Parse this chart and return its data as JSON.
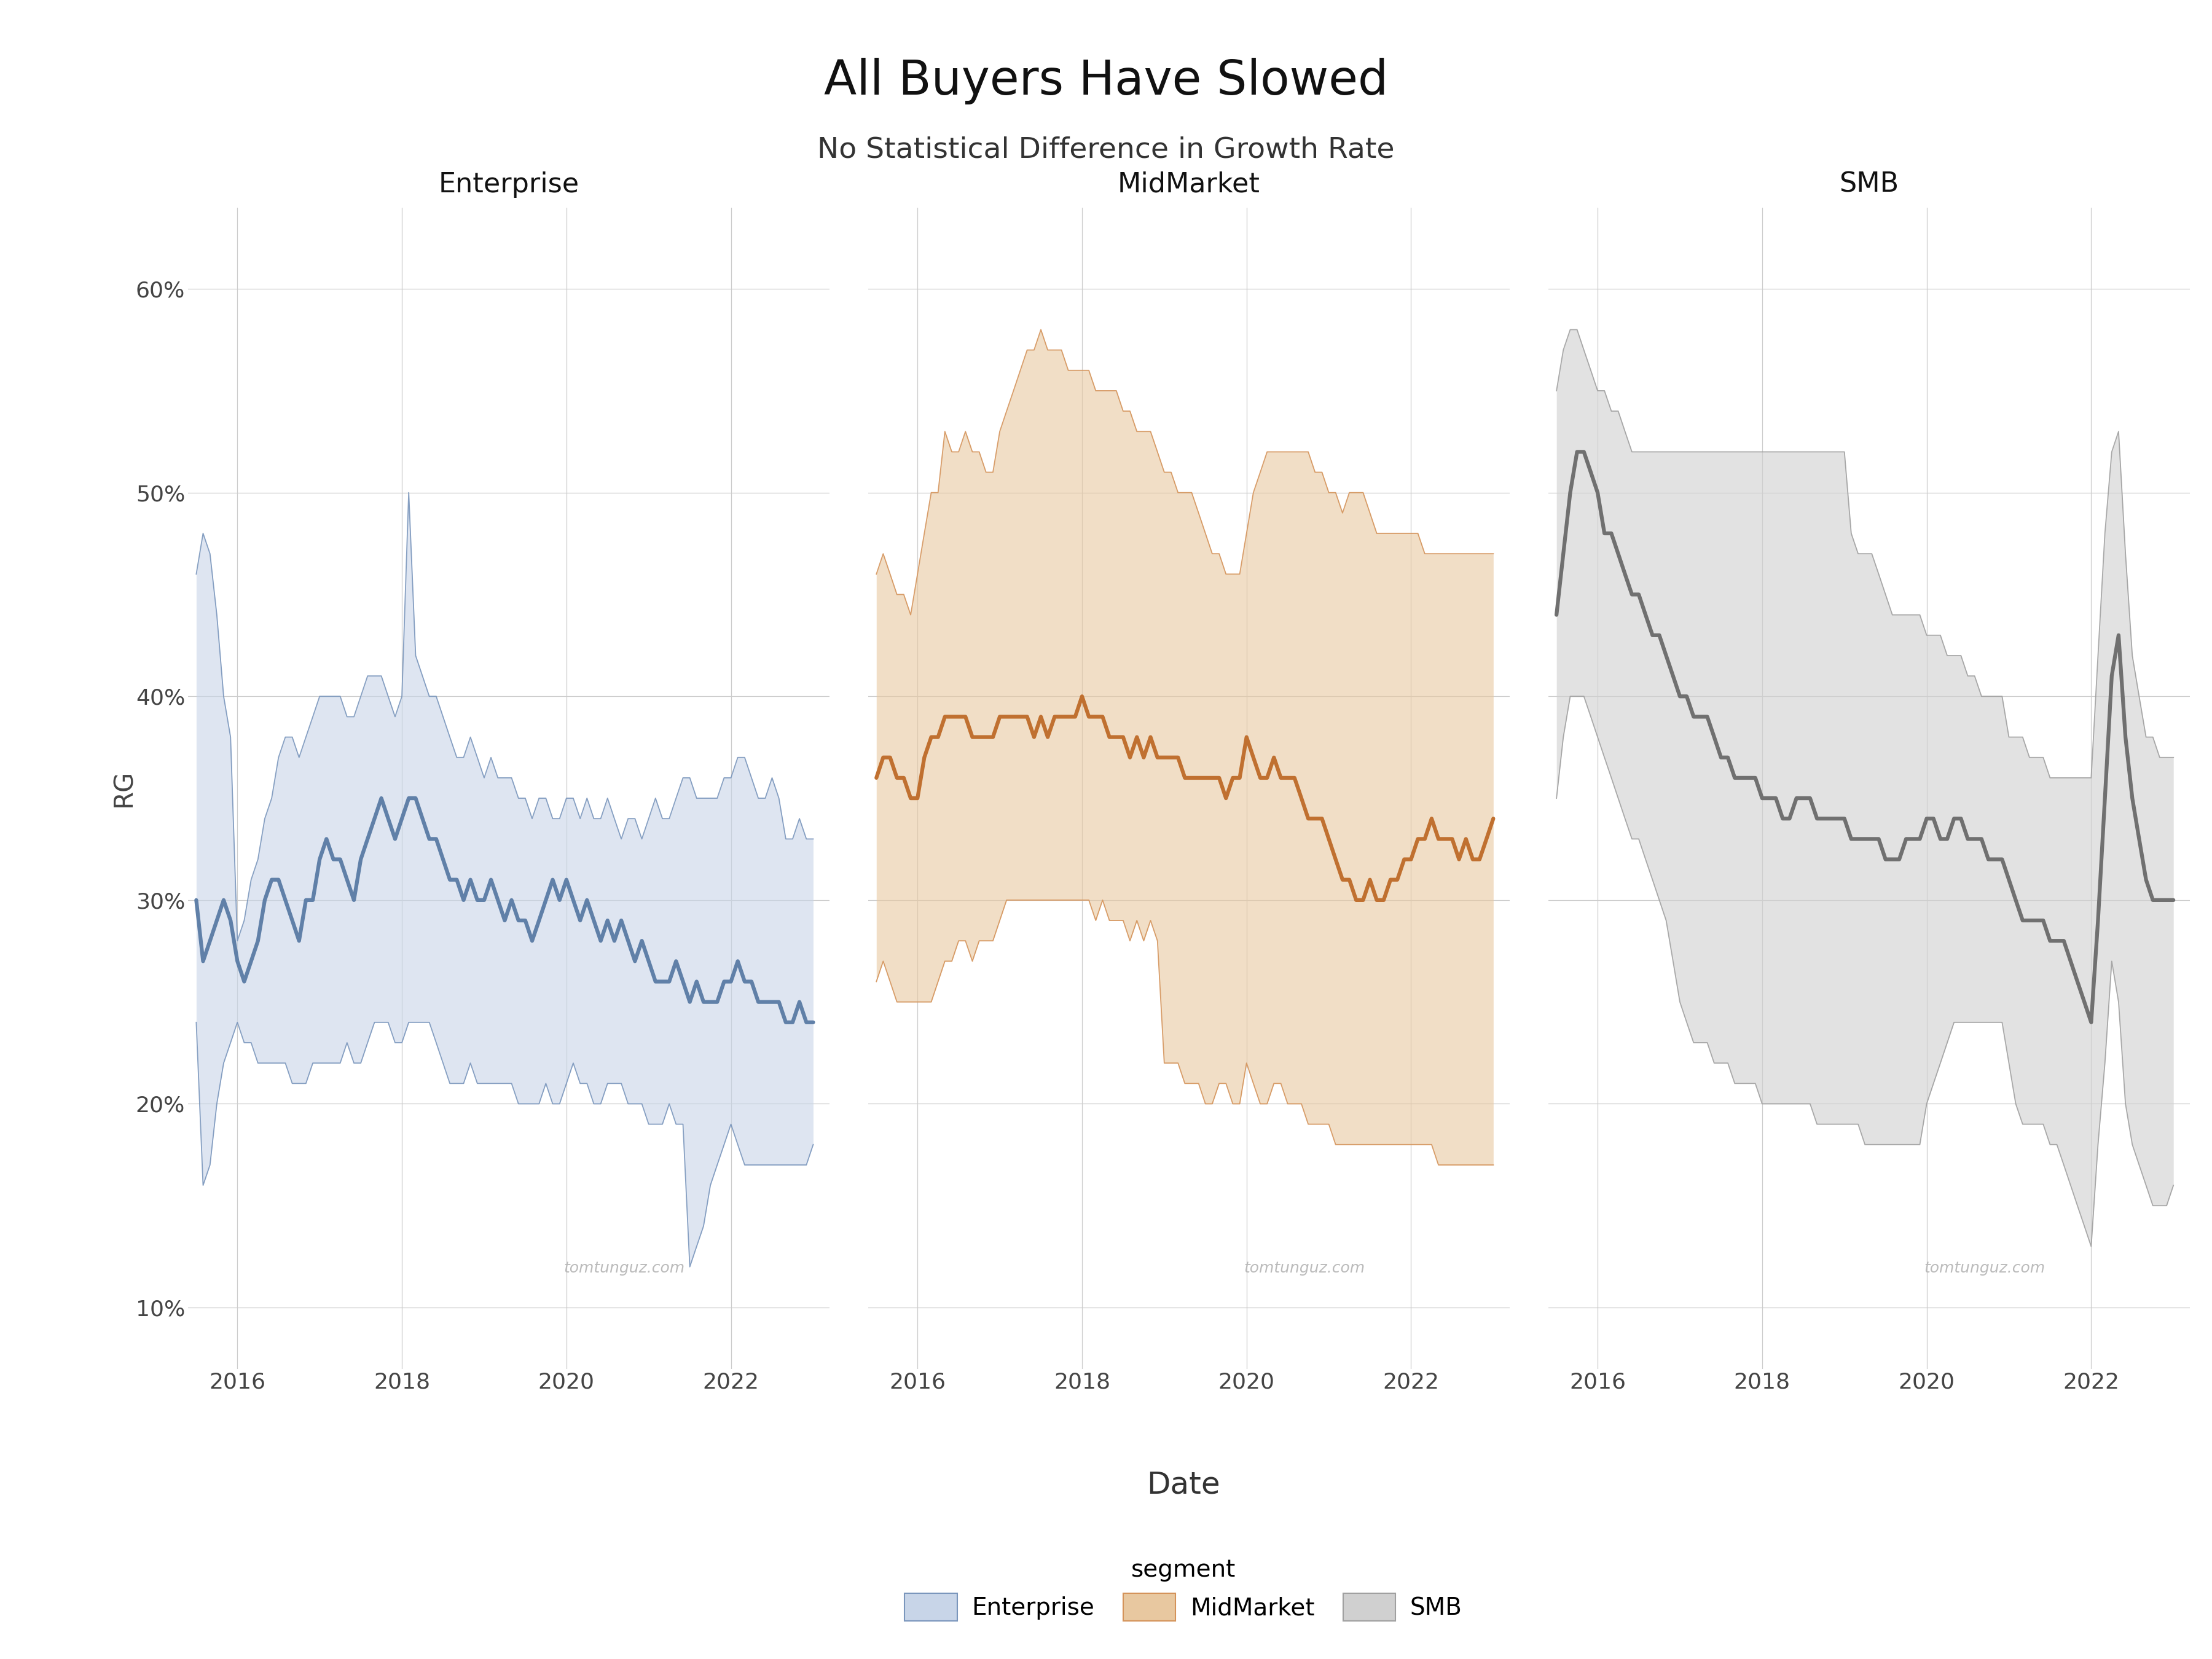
{
  "title": "All Buyers Have Slowed",
  "subtitle": "No Statistical Difference in Growth Rate",
  "xlabel": "Date",
  "ylabel": "RG",
  "background_color": "#ffffff",
  "panel_titles": [
    "Enterprise",
    "MidMarket",
    "SMB"
  ],
  "yticks": [
    0.1,
    0.2,
    0.3,
    0.4,
    0.5,
    0.6
  ],
  "ytick_labels": [
    "10%",
    "20%",
    "30%",
    "40%",
    "50%",
    "60%"
  ],
  "ylim": [
    0.07,
    0.64
  ],
  "xlim": [
    2015.4,
    2023.2
  ],
  "xtick_labels": [
    "2016",
    "2018",
    "2020",
    "2022"
  ],
  "watermark": "tomtunguz.com",
  "enterprise_fill_color": "#c8d5e8",
  "enterprise_line_color": "#7a96bc",
  "enterprise_median_color": "#6080a8",
  "midmarket_fill_color": "#e8c8a0",
  "midmarket_line_color": "#d4935a",
  "midmarket_median_color": "#c07030",
  "smb_fill_color": "#d0d0d0",
  "smb_line_color": "#a0a0a0",
  "smb_median_color": "#707070",
  "enterprise_dates": [
    2015.5,
    2015.583,
    2015.667,
    2015.75,
    2015.833,
    2015.917,
    2016.0,
    2016.083,
    2016.167,
    2016.25,
    2016.333,
    2016.417,
    2016.5,
    2016.583,
    2016.667,
    2016.75,
    2016.833,
    2016.917,
    2017.0,
    2017.083,
    2017.167,
    2017.25,
    2017.333,
    2017.417,
    2017.5,
    2017.583,
    2017.667,
    2017.75,
    2017.833,
    2017.917,
    2018.0,
    2018.083,
    2018.167,
    2018.25,
    2018.333,
    2018.417,
    2018.5,
    2018.583,
    2018.667,
    2018.75,
    2018.833,
    2018.917,
    2019.0,
    2019.083,
    2019.167,
    2019.25,
    2019.333,
    2019.417,
    2019.5,
    2019.583,
    2019.667,
    2019.75,
    2019.833,
    2019.917,
    2020.0,
    2020.083,
    2020.167,
    2020.25,
    2020.333,
    2020.417,
    2020.5,
    2020.583,
    2020.667,
    2020.75,
    2020.833,
    2020.917,
    2021.0,
    2021.083,
    2021.167,
    2021.25,
    2021.333,
    2021.417,
    2021.5,
    2021.583,
    2021.667,
    2021.75,
    2021.833,
    2021.917,
    2022.0,
    2022.083,
    2022.167,
    2022.25,
    2022.333,
    2022.417,
    2022.5,
    2022.583,
    2022.667,
    2022.75,
    2022.833,
    2022.917,
    2023.0
  ],
  "enterprise_median": [
    0.3,
    0.27,
    0.28,
    0.29,
    0.3,
    0.29,
    0.27,
    0.26,
    0.27,
    0.28,
    0.3,
    0.31,
    0.31,
    0.3,
    0.29,
    0.28,
    0.3,
    0.3,
    0.32,
    0.33,
    0.32,
    0.32,
    0.31,
    0.3,
    0.32,
    0.33,
    0.34,
    0.35,
    0.34,
    0.33,
    0.34,
    0.35,
    0.35,
    0.34,
    0.33,
    0.33,
    0.32,
    0.31,
    0.31,
    0.3,
    0.31,
    0.3,
    0.3,
    0.31,
    0.3,
    0.29,
    0.3,
    0.29,
    0.29,
    0.28,
    0.29,
    0.3,
    0.31,
    0.3,
    0.31,
    0.3,
    0.29,
    0.3,
    0.29,
    0.28,
    0.29,
    0.28,
    0.29,
    0.28,
    0.27,
    0.28,
    0.27,
    0.26,
    0.26,
    0.26,
    0.27,
    0.26,
    0.25,
    0.26,
    0.25,
    0.25,
    0.25,
    0.26,
    0.26,
    0.27,
    0.26,
    0.26,
    0.25,
    0.25,
    0.25,
    0.25,
    0.24,
    0.24,
    0.25,
    0.24,
    0.24
  ],
  "enterprise_upper": [
    0.46,
    0.48,
    0.47,
    0.44,
    0.4,
    0.38,
    0.28,
    0.29,
    0.31,
    0.32,
    0.34,
    0.35,
    0.37,
    0.38,
    0.38,
    0.37,
    0.38,
    0.39,
    0.4,
    0.4,
    0.4,
    0.4,
    0.39,
    0.39,
    0.4,
    0.41,
    0.41,
    0.41,
    0.4,
    0.39,
    0.4,
    0.5,
    0.42,
    0.41,
    0.4,
    0.4,
    0.39,
    0.38,
    0.37,
    0.37,
    0.38,
    0.37,
    0.36,
    0.37,
    0.36,
    0.36,
    0.36,
    0.35,
    0.35,
    0.34,
    0.35,
    0.35,
    0.34,
    0.34,
    0.35,
    0.35,
    0.34,
    0.35,
    0.34,
    0.34,
    0.35,
    0.34,
    0.33,
    0.34,
    0.34,
    0.33,
    0.34,
    0.35,
    0.34,
    0.34,
    0.35,
    0.36,
    0.36,
    0.35,
    0.35,
    0.35,
    0.35,
    0.36,
    0.36,
    0.37,
    0.37,
    0.36,
    0.35,
    0.35,
    0.36,
    0.35,
    0.33,
    0.33,
    0.34,
    0.33,
    0.33
  ],
  "enterprise_lower": [
    0.24,
    0.16,
    0.17,
    0.2,
    0.22,
    0.23,
    0.24,
    0.23,
    0.23,
    0.22,
    0.22,
    0.22,
    0.22,
    0.22,
    0.21,
    0.21,
    0.21,
    0.22,
    0.22,
    0.22,
    0.22,
    0.22,
    0.23,
    0.22,
    0.22,
    0.23,
    0.24,
    0.24,
    0.24,
    0.23,
    0.23,
    0.24,
    0.24,
    0.24,
    0.24,
    0.23,
    0.22,
    0.21,
    0.21,
    0.21,
    0.22,
    0.21,
    0.21,
    0.21,
    0.21,
    0.21,
    0.21,
    0.2,
    0.2,
    0.2,
    0.2,
    0.21,
    0.2,
    0.2,
    0.21,
    0.22,
    0.21,
    0.21,
    0.2,
    0.2,
    0.21,
    0.21,
    0.21,
    0.2,
    0.2,
    0.2,
    0.19,
    0.19,
    0.19,
    0.2,
    0.19,
    0.19,
    0.12,
    0.13,
    0.14,
    0.16,
    0.17,
    0.18,
    0.19,
    0.18,
    0.17,
    0.17,
    0.17,
    0.17,
    0.17,
    0.17,
    0.17,
    0.17,
    0.17,
    0.17,
    0.18
  ],
  "midmarket_dates": [
    2015.5,
    2015.583,
    2015.667,
    2015.75,
    2015.833,
    2015.917,
    2016.0,
    2016.083,
    2016.167,
    2016.25,
    2016.333,
    2016.417,
    2016.5,
    2016.583,
    2016.667,
    2016.75,
    2016.833,
    2016.917,
    2017.0,
    2017.083,
    2017.167,
    2017.25,
    2017.333,
    2017.417,
    2017.5,
    2017.583,
    2017.667,
    2017.75,
    2017.833,
    2017.917,
    2018.0,
    2018.083,
    2018.167,
    2018.25,
    2018.333,
    2018.417,
    2018.5,
    2018.583,
    2018.667,
    2018.75,
    2018.833,
    2018.917,
    2019.0,
    2019.083,
    2019.167,
    2019.25,
    2019.333,
    2019.417,
    2019.5,
    2019.583,
    2019.667,
    2019.75,
    2019.833,
    2019.917,
    2020.0,
    2020.083,
    2020.167,
    2020.25,
    2020.333,
    2020.417,
    2020.5,
    2020.583,
    2020.667,
    2020.75,
    2020.833,
    2020.917,
    2021.0,
    2021.083,
    2021.167,
    2021.25,
    2021.333,
    2021.417,
    2021.5,
    2021.583,
    2021.667,
    2021.75,
    2021.833,
    2021.917,
    2022.0,
    2022.083,
    2022.167,
    2022.25,
    2022.333,
    2022.417,
    2022.5,
    2022.583,
    2022.667,
    2022.75,
    2022.833,
    2022.917,
    2023.0
  ],
  "midmarket_median": [
    0.36,
    0.37,
    0.37,
    0.36,
    0.36,
    0.35,
    0.35,
    0.37,
    0.38,
    0.38,
    0.39,
    0.39,
    0.39,
    0.39,
    0.38,
    0.38,
    0.38,
    0.38,
    0.39,
    0.39,
    0.39,
    0.39,
    0.39,
    0.38,
    0.39,
    0.38,
    0.39,
    0.39,
    0.39,
    0.39,
    0.4,
    0.39,
    0.39,
    0.39,
    0.38,
    0.38,
    0.38,
    0.37,
    0.38,
    0.37,
    0.38,
    0.37,
    0.37,
    0.37,
    0.37,
    0.36,
    0.36,
    0.36,
    0.36,
    0.36,
    0.36,
    0.35,
    0.36,
    0.36,
    0.38,
    0.37,
    0.36,
    0.36,
    0.37,
    0.36,
    0.36,
    0.36,
    0.35,
    0.34,
    0.34,
    0.34,
    0.33,
    0.32,
    0.31,
    0.31,
    0.3,
    0.3,
    0.31,
    0.3,
    0.3,
    0.31,
    0.31,
    0.32,
    0.32,
    0.33,
    0.33,
    0.34,
    0.33,
    0.33,
    0.33,
    0.32,
    0.33,
    0.32,
    0.32,
    0.33,
    0.34
  ],
  "midmarket_upper": [
    0.46,
    0.47,
    0.46,
    0.45,
    0.45,
    0.44,
    0.46,
    0.48,
    0.5,
    0.5,
    0.53,
    0.52,
    0.52,
    0.53,
    0.52,
    0.52,
    0.51,
    0.51,
    0.53,
    0.54,
    0.55,
    0.56,
    0.57,
    0.57,
    0.58,
    0.57,
    0.57,
    0.57,
    0.56,
    0.56,
    0.56,
    0.56,
    0.55,
    0.55,
    0.55,
    0.55,
    0.54,
    0.54,
    0.53,
    0.53,
    0.53,
    0.52,
    0.51,
    0.51,
    0.5,
    0.5,
    0.5,
    0.49,
    0.48,
    0.47,
    0.47,
    0.46,
    0.46,
    0.46,
    0.48,
    0.5,
    0.51,
    0.52,
    0.52,
    0.52,
    0.52,
    0.52,
    0.52,
    0.52,
    0.51,
    0.51,
    0.5,
    0.5,
    0.49,
    0.5,
    0.5,
    0.5,
    0.49,
    0.48,
    0.48,
    0.48,
    0.48,
    0.48,
    0.48,
    0.48,
    0.47,
    0.47,
    0.47,
    0.47,
    0.47,
    0.47,
    0.47,
    0.47,
    0.47,
    0.47,
    0.47
  ],
  "midmarket_lower": [
    0.26,
    0.27,
    0.26,
    0.25,
    0.25,
    0.25,
    0.25,
    0.25,
    0.25,
    0.26,
    0.27,
    0.27,
    0.28,
    0.28,
    0.27,
    0.28,
    0.28,
    0.28,
    0.29,
    0.3,
    0.3,
    0.3,
    0.3,
    0.3,
    0.3,
    0.3,
    0.3,
    0.3,
    0.3,
    0.3,
    0.3,
    0.3,
    0.29,
    0.3,
    0.29,
    0.29,
    0.29,
    0.28,
    0.29,
    0.28,
    0.29,
    0.28,
    0.22,
    0.22,
    0.22,
    0.21,
    0.21,
    0.21,
    0.2,
    0.2,
    0.21,
    0.21,
    0.2,
    0.2,
    0.22,
    0.21,
    0.2,
    0.2,
    0.21,
    0.21,
    0.2,
    0.2,
    0.2,
    0.19,
    0.19,
    0.19,
    0.19,
    0.18,
    0.18,
    0.18,
    0.18,
    0.18,
    0.18,
    0.18,
    0.18,
    0.18,
    0.18,
    0.18,
    0.18,
    0.18,
    0.18,
    0.18,
    0.17,
    0.17,
    0.17,
    0.17,
    0.17,
    0.17,
    0.17,
    0.17,
    0.17
  ],
  "smb_dates": [
    2015.5,
    2015.583,
    2015.667,
    2015.75,
    2015.833,
    2015.917,
    2016.0,
    2016.083,
    2016.167,
    2016.25,
    2016.333,
    2016.417,
    2016.5,
    2016.583,
    2016.667,
    2016.75,
    2016.833,
    2016.917,
    2017.0,
    2017.083,
    2017.167,
    2017.25,
    2017.333,
    2017.417,
    2017.5,
    2017.583,
    2017.667,
    2017.75,
    2017.833,
    2017.917,
    2018.0,
    2018.083,
    2018.167,
    2018.25,
    2018.333,
    2018.417,
    2018.5,
    2018.583,
    2018.667,
    2018.75,
    2018.833,
    2018.917,
    2019.0,
    2019.083,
    2019.167,
    2019.25,
    2019.333,
    2019.417,
    2019.5,
    2019.583,
    2019.667,
    2019.75,
    2019.833,
    2019.917,
    2020.0,
    2020.083,
    2020.167,
    2020.25,
    2020.333,
    2020.417,
    2020.5,
    2020.583,
    2020.667,
    2020.75,
    2020.833,
    2020.917,
    2021.0,
    2021.083,
    2021.167,
    2021.25,
    2021.333,
    2021.417,
    2021.5,
    2021.583,
    2021.667,
    2021.75,
    2021.833,
    2021.917,
    2022.0,
    2022.083,
    2022.167,
    2022.25,
    2022.333,
    2022.417,
    2022.5,
    2022.583,
    2022.667,
    2022.75,
    2022.833,
    2022.917,
    2023.0
  ],
  "smb_median": [
    0.44,
    0.47,
    0.5,
    0.52,
    0.52,
    0.51,
    0.5,
    0.48,
    0.48,
    0.47,
    0.46,
    0.45,
    0.45,
    0.44,
    0.43,
    0.43,
    0.42,
    0.41,
    0.4,
    0.4,
    0.39,
    0.39,
    0.39,
    0.38,
    0.37,
    0.37,
    0.36,
    0.36,
    0.36,
    0.36,
    0.35,
    0.35,
    0.35,
    0.34,
    0.34,
    0.35,
    0.35,
    0.35,
    0.34,
    0.34,
    0.34,
    0.34,
    0.34,
    0.33,
    0.33,
    0.33,
    0.33,
    0.33,
    0.32,
    0.32,
    0.32,
    0.33,
    0.33,
    0.33,
    0.34,
    0.34,
    0.33,
    0.33,
    0.34,
    0.34,
    0.33,
    0.33,
    0.33,
    0.32,
    0.32,
    0.32,
    0.31,
    0.3,
    0.29,
    0.29,
    0.29,
    0.29,
    0.28,
    0.28,
    0.28,
    0.27,
    0.26,
    0.25,
    0.24,
    0.29,
    0.35,
    0.41,
    0.43,
    0.38,
    0.35,
    0.33,
    0.31,
    0.3,
    0.3,
    0.3,
    0.3
  ],
  "smb_upper": [
    0.55,
    0.57,
    0.58,
    0.58,
    0.57,
    0.56,
    0.55,
    0.55,
    0.54,
    0.54,
    0.53,
    0.52,
    0.52,
    0.52,
    0.52,
    0.52,
    0.52,
    0.52,
    0.52,
    0.52,
    0.52,
    0.52,
    0.52,
    0.52,
    0.52,
    0.52,
    0.52,
    0.52,
    0.52,
    0.52,
    0.52,
    0.52,
    0.52,
    0.52,
    0.52,
    0.52,
    0.52,
    0.52,
    0.52,
    0.52,
    0.52,
    0.52,
    0.52,
    0.48,
    0.47,
    0.47,
    0.47,
    0.46,
    0.45,
    0.44,
    0.44,
    0.44,
    0.44,
    0.44,
    0.43,
    0.43,
    0.43,
    0.42,
    0.42,
    0.42,
    0.41,
    0.41,
    0.4,
    0.4,
    0.4,
    0.4,
    0.38,
    0.38,
    0.38,
    0.37,
    0.37,
    0.37,
    0.36,
    0.36,
    0.36,
    0.36,
    0.36,
    0.36,
    0.36,
    0.42,
    0.48,
    0.52,
    0.53,
    0.47,
    0.42,
    0.4,
    0.38,
    0.38,
    0.37,
    0.37,
    0.37
  ],
  "smb_lower": [
    0.35,
    0.38,
    0.4,
    0.4,
    0.4,
    0.39,
    0.38,
    0.37,
    0.36,
    0.35,
    0.34,
    0.33,
    0.33,
    0.32,
    0.31,
    0.3,
    0.29,
    0.27,
    0.25,
    0.24,
    0.23,
    0.23,
    0.23,
    0.22,
    0.22,
    0.22,
    0.21,
    0.21,
    0.21,
    0.21,
    0.2,
    0.2,
    0.2,
    0.2,
    0.2,
    0.2,
    0.2,
    0.2,
    0.19,
    0.19,
    0.19,
    0.19,
    0.19,
    0.19,
    0.19,
    0.18,
    0.18,
    0.18,
    0.18,
    0.18,
    0.18,
    0.18,
    0.18,
    0.18,
    0.2,
    0.21,
    0.22,
    0.23,
    0.24,
    0.24,
    0.24,
    0.24,
    0.24,
    0.24,
    0.24,
    0.24,
    0.22,
    0.2,
    0.19,
    0.19,
    0.19,
    0.19,
    0.18,
    0.18,
    0.17,
    0.16,
    0.15,
    0.14,
    0.13,
    0.18,
    0.22,
    0.27,
    0.25,
    0.2,
    0.18,
    0.17,
    0.16,
    0.15,
    0.15,
    0.15,
    0.16
  ]
}
